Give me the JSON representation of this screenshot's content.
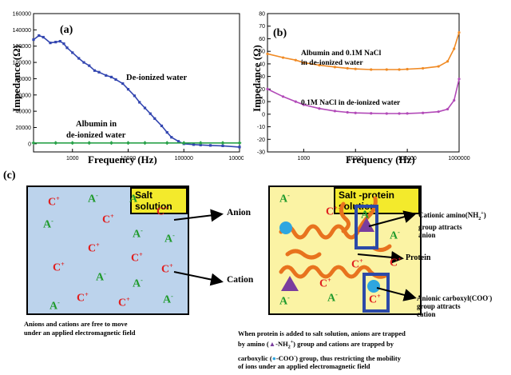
{
  "panels": {
    "a": {
      "label": "(a)",
      "xlabel": "Frequency (Hz)",
      "ylabel": "Impedance (Ω)",
      "yticks": [
        "160000",
        "140000",
        "120000",
        "100000",
        "80000",
        "60000",
        "40000",
        "20000",
        "0"
      ],
      "xticks": [
        "1000",
        "10000",
        "100000",
        "1000000"
      ],
      "annotations": {
        "dw": "De-ionized water",
        "alb1": "Albumin in",
        "alb2": "de-ionized water"
      }
    },
    "b": {
      "label": "(b)",
      "xlabel": "Frequency (Hz)",
      "ylabel": "Impedance (Ω)",
      "yticks": [
        "80",
        "70",
        "60",
        "50",
        "40",
        "30",
        "20",
        "10",
        "0",
        "-10",
        "-20",
        "-30"
      ],
      "xticks": [
        "1000",
        "10000",
        "100000",
        "1000000"
      ],
      "annotations": {
        "alb1": "Albumin and 0.1M NaCl",
        "alb2": "in de-ionized water",
        "nacl": "0.1M NaCl in de-ionized water"
      }
    },
    "c": {
      "label": "(c)",
      "salt_label": "Salt solution",
      "protein_label": "Salt -protein solution",
      "anion": "Anion",
      "cation": "Cation",
      "protein": "Protein",
      "cationic1": "Cationic amino",
      "cationic_formula": "(NH",
      "cationic2": "group attracts",
      "cationic3": "anion",
      "anionic1": "Anionic carboxyl",
      "anionic_formula": "(COO",
      "anionic2": "group attracts",
      "anionic3": "cation",
      "cap_left1": "Anions and cations are free to move",
      "cap_left2": "under an applied electromagnetic field",
      "cap_right1": "When protein is added to salt solution, anions are trapped",
      "cap_right2a": "by amino (",
      "cap_right2b": "-NH",
      "cap_right2c": ") group and cations are trapped by",
      "cap_right3a": "carboxylic (",
      "cap_right3b": "-COO",
      "cap_right3c": ") group, thus restricting the mobility",
      "cap_right4": "of ions under an applied electromagnetic field",
      "cplus": "C",
      "aminus": "A"
    }
  },
  "chart_data": [
    {
      "type": "line",
      "panel": "(a)",
      "xlabel": "Frequency (Hz)",
      "ylabel": "Impedance (Ω)",
      "xscale": "log",
      "xlim": [
        200,
        1000000
      ],
      "ylim": [
        -10000,
        160000
      ],
      "series": [
        {
          "name": "De-ionized water",
          "color": "#3346b0",
          "x": [
            200,
            250,
            300,
            400,
            500,
            600,
            700,
            800,
            1000,
            1300,
            1600,
            2000,
            2500,
            3000,
            4000,
            5000,
            6000,
            8000,
            10000,
            13000,
            16000,
            20000,
            25000,
            30000,
            40000,
            50000,
            60000,
            80000,
            100000,
            150000,
            200000,
            300000,
            500000,
            1000000
          ],
          "y": [
            128000,
            133000,
            131000,
            124000,
            125000,
            126000,
            123000,
            118000,
            112000,
            105000,
            100000,
            96000,
            90000,
            88000,
            84000,
            82000,
            79000,
            74000,
            67000,
            59000,
            51000,
            44000,
            37000,
            31000,
            22000,
            14000,
            8000,
            3000,
            0,
            -1000,
            -1500,
            -2000,
            -2500,
            -4000
          ]
        },
        {
          "name": "Albumin in de-ionized water",
          "color": "#2aa24a",
          "x": [
            200,
            500,
            1000,
            2000,
            5000,
            10000,
            20000,
            50000,
            100000,
            200000,
            500000,
            1000000
          ],
          "y": [
            1000,
            1000,
            1000,
            1000,
            1000,
            1000,
            1000,
            1000,
            1000,
            1000,
            1000,
            1000
          ]
        }
      ]
    },
    {
      "type": "line",
      "panel": "(b)",
      "xlabel": "Frequency (Hz)",
      "ylabel": "Impedance (Ω)",
      "xscale": "log",
      "xlim": [
        200,
        1000000
      ],
      "ylim": [
        -30,
        80
      ],
      "series": [
        {
          "name": "Albumin and 0.1M NaCl in de-ionized water",
          "color": "#f08a24",
          "x": [
            200,
            400,
            700,
            1000,
            2000,
            4000,
            7000,
            10000,
            20000,
            40000,
            70000,
            100000,
            200000,
            400000,
            600000,
            800000,
            1000000
          ],
          "y": [
            48,
            45,
            43,
            41,
            39,
            37.5,
            36.5,
            36,
            35.5,
            35.5,
            35.5,
            35.8,
            36.5,
            38,
            42,
            52,
            65
          ]
        },
        {
          "name": "0.1M NaCl in de-ionized water",
          "color": "#b24ab8",
          "x": [
            200,
            400,
            700,
            1000,
            2000,
            4000,
            7000,
            10000,
            20000,
            40000,
            70000,
            100000,
            200000,
            400000,
            600000,
            800000,
            1000000
          ],
          "y": [
            20,
            14,
            10,
            7.5,
            4.5,
            2.5,
            1.5,
            1,
            0.7,
            0.5,
            0.5,
            0.6,
            1,
            2,
            4,
            11,
            28
          ]
        }
      ]
    }
  ]
}
